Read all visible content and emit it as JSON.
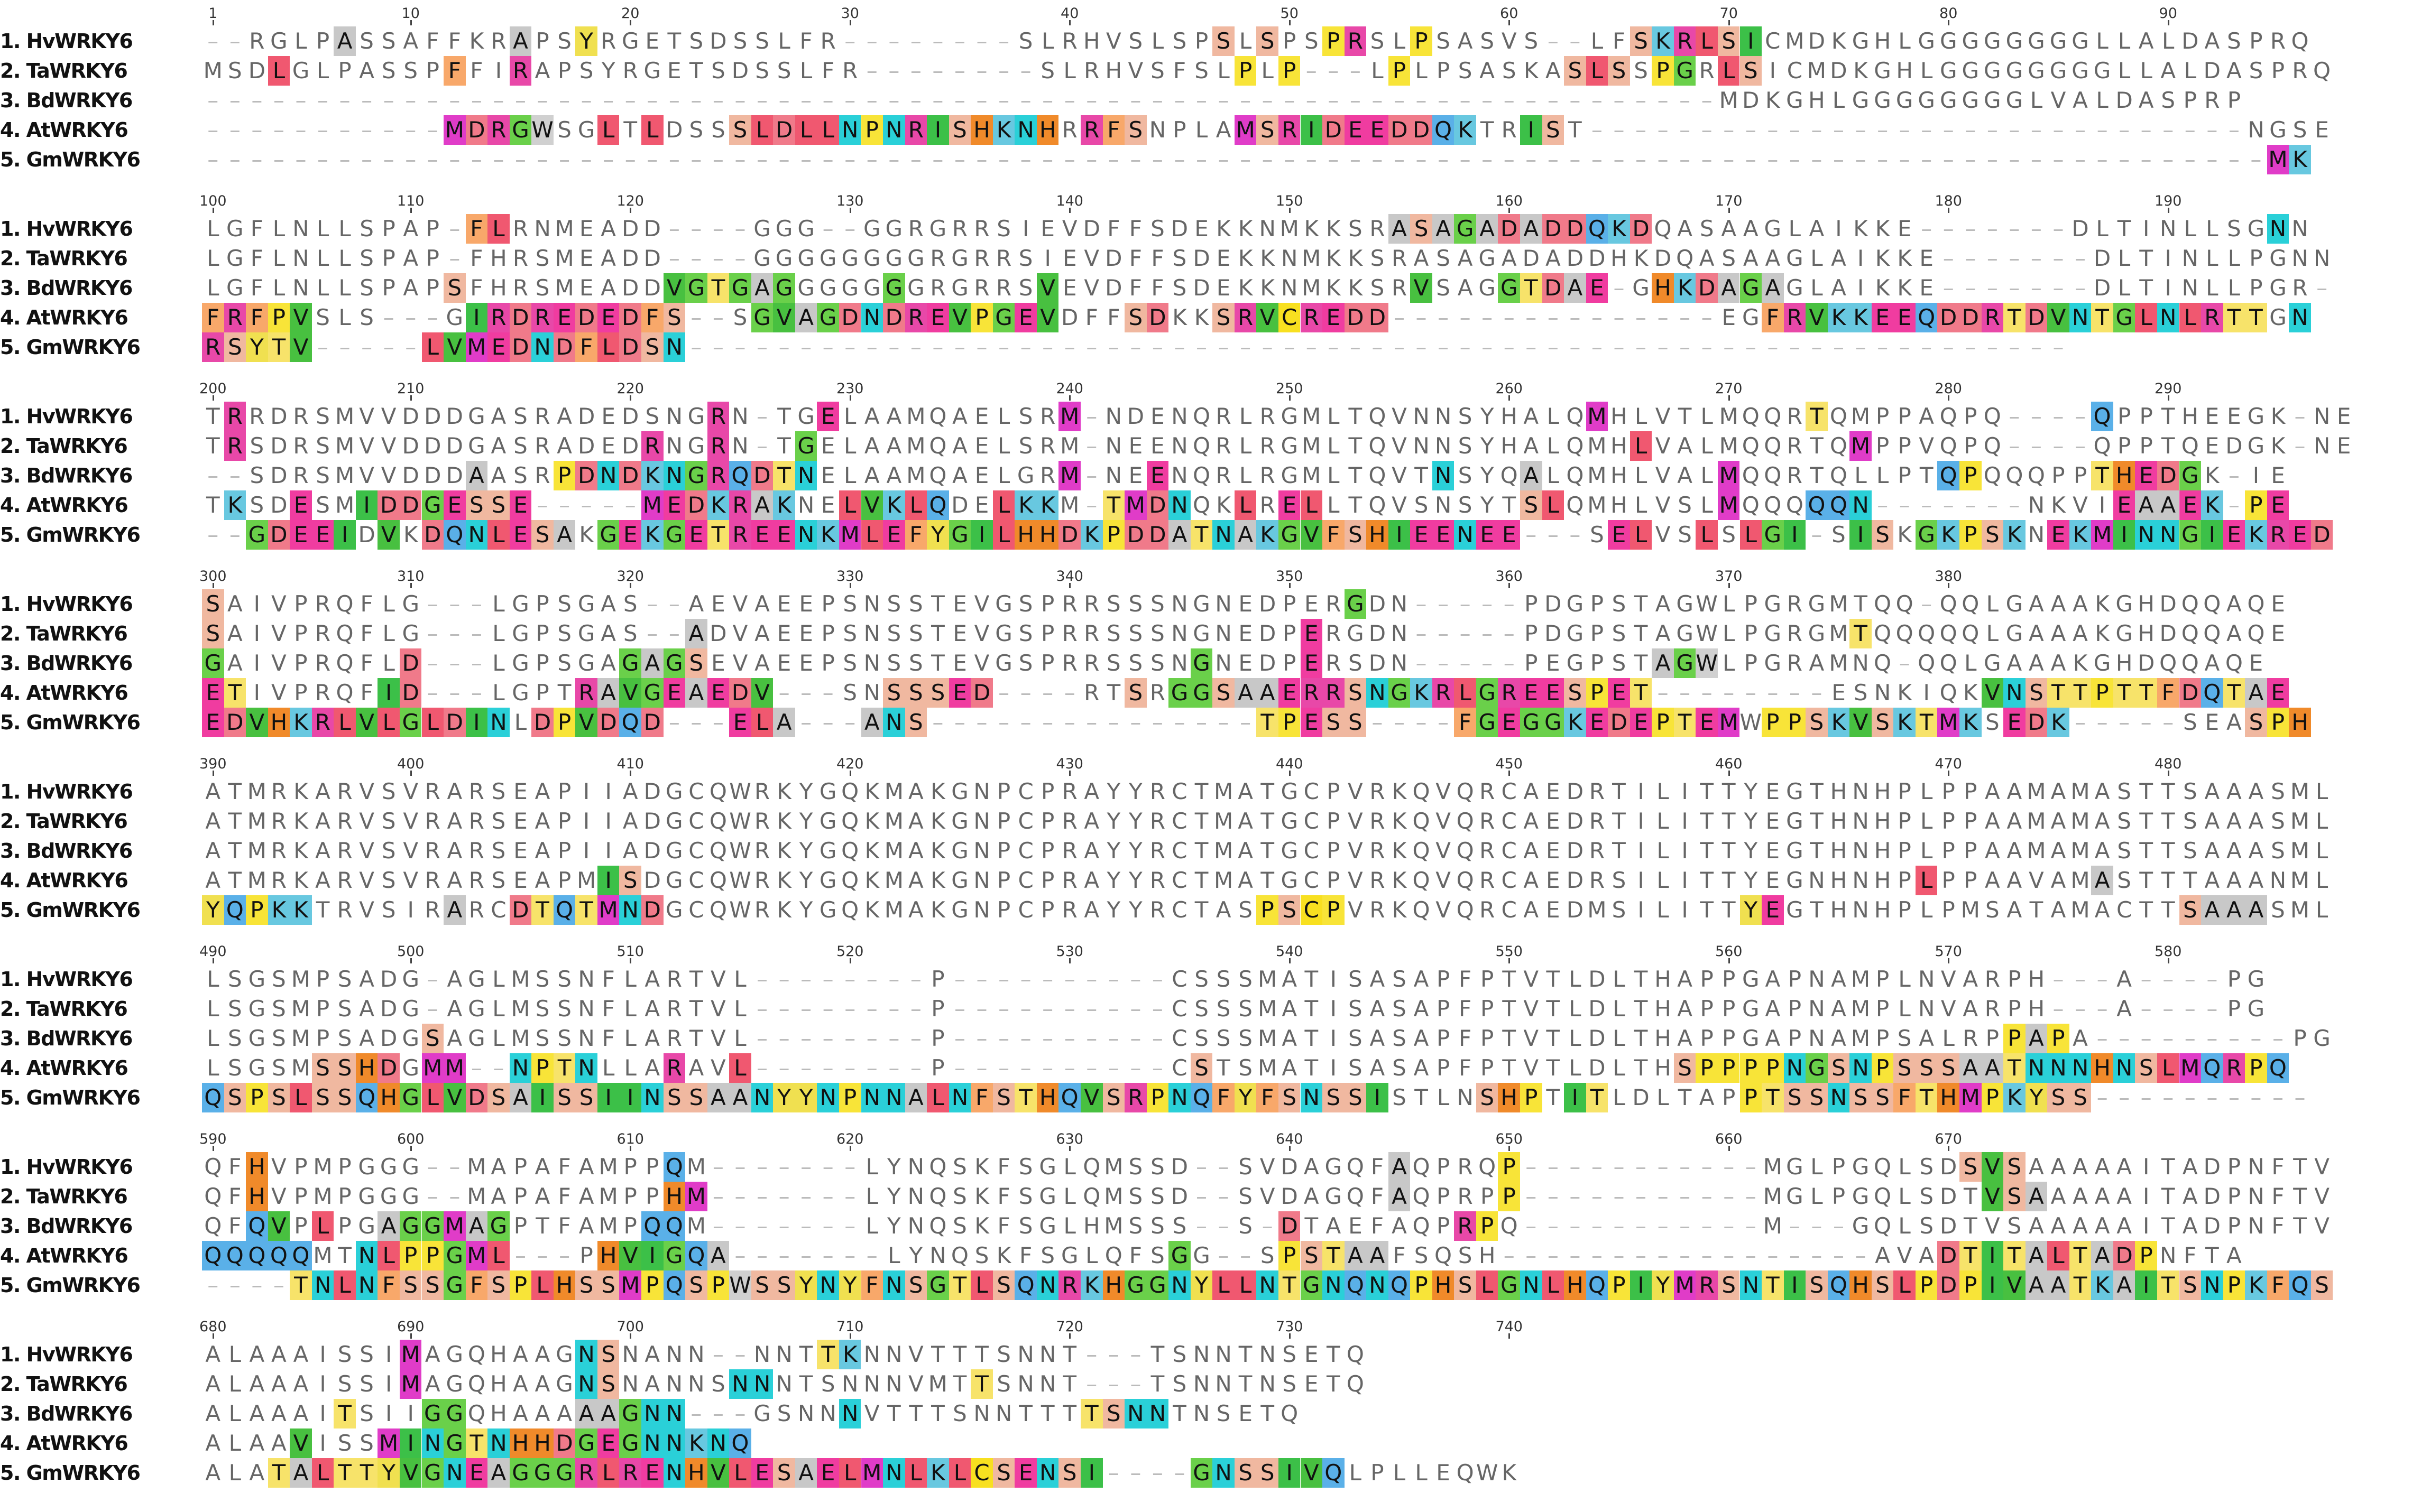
{
  "blocks": [
    {
      "ruler": [
        "1",
        "10",
        "20",
        "30",
        "40",
        "50",
        "60",
        "70",
        "80",
        "90"
      ],
      "rows": [
        {
          "name": "1. HvWRKY6",
          "seq": "--RGLPASSAFFKRAPSYRGETSDSSLFR--------SLRHVSLSPSLSPSPRSLPSASVS--LFSKRLSICMDKGHLGGGGGGGGLLALDASPRQ",
          "hl": "......+.......+..+............................+.+..++..+.....++..++++++........................................"
        },
        {
          "name": "2. TaWRKY6",
          "seq": "MSDLGLPASSPFFIRAPSYRGETSDSSLFR--------SLRHVSFSLPLP---LPLPSASKASLSSPGRLSICMDKGHLGGGGGGGGLLALDASPRQ",
          "hl": "...+.......+..+................................+.+....+.......+++.++.++........................................."
        },
        {
          "name": "3. BdWRKY6",
          "seq": "---------------------------------------------------------------------MDKGHLGGGGGGGGLVALDASPRP",
          "hl": "..............................................................................................+......+"
        },
        {
          "name": "4. AtWRKY6",
          "seq": "-----------MDRGWSGLTLDSSSLDLLNPNRISHKNHRRFSNPLAMSRIDEEDDQKTRIST------------------------------NGSE",
          "hl": "...........+++++..+.+...+++++++++++++++.+++....+++++++++++..++.+.................................+++"
        },
        {
          "name": "5. GmWRKY6",
          "seq": "----------------------------------------------------------------------------------------------MK",
          "hl": "..............................................................................................++"
        }
      ]
    },
    {
      "ruler": [
        "100",
        "110",
        "120",
        "130",
        "140",
        "150",
        "160",
        "170",
        "180",
        "190"
      ],
      "rows": [
        {
          "name": "1. HvWRKY6",
          "seq": "LGFLNLLSPAP-FLRNMEADD----GGG--GGRGRRSIEVDFFSDEKKNMKKSRASAGADADDQKDQASAAGLAIKKE-------DLTINLLSGNN",
          "hl": "............++........................................++++++++++++............................+."
        },
        {
          "name": "2. TaWRKY6",
          "seq": "LGFLNLLSPAP-FHRSMEADD----GGGGGGGGRGRRSIEVDFFSDEKKNMKKSRASAGADADDHKDQASAAGLAIKKE-------DLTINLLPGNN",
          "hl": "................................................................................................"
        },
        {
          "name": "3. BdWRKY6",
          "seq": "LGFLNLLSPAPSFHRSMEADDVGTGAGGGGGGGRGRRSVEVDFFSDEKKNMKKSRVSAGGTDAE-GHKDAGAGLAIKKE-------DLTINLLPGR-",
          "hl": "...........+.........++++++....+......+................+...++++++.++++++..................."
        },
        {
          "name": "4. AtWRKY6",
          "seq": "FRFPVSLS---GIRDREDEDFS--SGVAGDNDREVPGEVDFFSDKKSRVCREDD---------------EGFRVKKEEQDDRTDVNTGLNLRTTGN",
          "hl": "+++++.......++++++++++...++++++++++++++...++..++++++++.................+++++++++++++++++++++++.++++++"
        },
        {
          "name": "5. GmWRKY6",
          "seq": "RSYTV-----LVMEDNDFLDSN---------------------------------------------------------------",
          "hl": "+++++.....+++++++++++++"
        }
      ]
    },
    {
      "ruler": [
        "200",
        "210",
        "220",
        "230",
        "240",
        "250",
        "260",
        "270",
        "280",
        "290"
      ],
      "rows": [
        {
          "name": "1. HvWRKY6",
          "seq": "TRRDRSMVVDDDGASRADEDSNGRN-TGELAAMQAELSRM-NDENQRLRGMLTQVNNSYHALQMHLVTLMQQRTQMPPAQPQ----QPPTHEEGK-NE",
          "hl": ".+.....................+.+..+..........+.......................+.........+..........+.+"
        },
        {
          "name": "2. TaWRKY6",
          "seq": "TRSDRSMVVDDDGASRADEDRNGRN-TGELAAMQAELSRM-NEENQRLRGMLTQVNNSYHALQMHLVALMQQRTQMPPVQPQ----QPPTQEDGK-NE",
          "hl": ".+..................+..+...+............+........................+.........+.........+"
        },
        {
          "name": "3. BdWRKY6",
          "seq": "--SDRSMVVDDDAASRPDNDKNGRQDTNELAAMQAELGRM-NEENQRLRGMLTQVTNSYQALQMHLVALMQQRTQLLPTQPQQQPPTHEDGK-IE",
          "hl": "............+...++++++++++++...........++..+............+...+........+.........++.....+++++..........+"
        },
        {
          "name": "4. AtWRKY6",
          "seq": "TKSDESMIDDGESSE-----MEDKRAKNELVKLQDELKKM-TMDNQKLRELLTQVSNSYTSLQMHLVSLMQQQQQN-------NKVIEAAEK-PE",
          "hl": ".+..+..++++++++.....+++++++..+++++..+++..++++..+.++.........++.......+...++++..........+++++++++.+"
        },
        {
          "name": "5. GmWRKY6",
          "seq": "--GDEEIDVKDQNLESAKGEKGETREENKMLEFYGILHHDKPDDATNAKGVFSHIEENEE---SELVSLSLGI-SISKGKPSKNEKMINNGIEKRED",
          "hl": "..+++++.+.+++++++.+++++++++++++++++++++++++++++++++++++++++++...++..+.++++.++.+++++.++++++++++++++++"
        }
      ]
    },
    {
      "ruler": [
        "300",
        "310",
        "320",
        "330",
        "340",
        "350",
        "360",
        "370",
        "380"
      ],
      "rows": [
        {
          "name": "1. HvWRKY6",
          "seq": "SAIVPRQFLG---LGPSGAS--AEVAEEPSNSSTEVGSPRRSSSNGNEDPERGDN-----PDGPSTAGWLPGRGMTQQ-QQLGAAAKGHDQQAQE",
          "hl": "+...................................................+....+"
        },
        {
          "name": "2. TaWRKY6",
          "seq": "SAIVPRQFLG---LGPSGAS--ADVAEEPSNSSTEVGSPRRSSSNGNEDPERGDN-----PDGPSTAGWLPGRGMTQQQQQLGAAAKGHDQQAQE",
          "hl": "+.....................+...........................+.....+..................+"
        },
        {
          "name": "3. BdWRKY6",
          "seq": "GAIVPRQFLD---LGPSGAGAGSEVAEEPSNSSTEVGSPRRSSSNGNEDPERSDN-----PEGPSTAGWLPGRAMNQ-QQLGAAAKGHDQQAQE",
          "hl": "+........+.........++++......................+....+...............+++"
        },
        {
          "name": "4. AtWRKY6",
          "seq": "ETIVPRQFID---LGPTRAVGEAEDV---SNSSSED----RTSRGGSAAERRSNGKRLGREESPET--------ESNKIQKVNSTTPTTFDQTAE",
          "hl": "++......++.......+++++++++.....++++++.....+.++++++++++++++++++++++++++++.........+++++++++++++++++++++++"
        },
        {
          "name": "5. GmWRKY6",
          "seq": "EDVHKRLVLGLDINLDPVDQD---ELA---ANS---------------TPESS----FGEGGKEDEPTEMWPPSKVSKTMKSEDK-----SEASPH",
          "hl": "++++++++++++++.++++++...+++...+++...............+++++....+++++++++++++.++++++++++.+++++......+++++++"
        }
      ]
    },
    {
      "ruler": [
        "390",
        "400",
        "410",
        "420",
        "430",
        "440",
        "450",
        "460",
        "470",
        "480"
      ],
      "rows": [
        {
          "name": "1. HvWRKY6",
          "seq": "ATMRKARVSVRARSEAPIIADGCQWRKYGQKMAKGNPCPRAYYRCTMATGCPVRKQVQRCAEDRTILITTYEGTHNHPLPPAAMAMASTTSAAASML",
          "hl": ""
        },
        {
          "name": "2. TaWRKY6",
          "seq": "ATMRKARVSVRARSEAPIIADGCQWRKYGQKMAKGNPCPRAYYRCTMATGCPVRKQVQRCAEDRTILITTYEGTHNHPLPPAAMAMASTTSAAASML",
          "hl": ""
        },
        {
          "name": "3. BdWRKY6",
          "seq": "ATMRKARVSVRARSEAPIIADGCQWRKYGQKMAKGNPCPRAYYRCTMATGCPVRKQVQRCAEDRTILITTYEGTHNHPLPPAAMAMASTTSAAASML",
          "hl": ""
        },
        {
          "name": "4. AtWRKY6",
          "seq": "ATMRKARVSVRARSEAPMISDGCQWRKYGQKMAKGNPCPRAYYRCTMATGCPVRKQVQRCAEDRSILITTYEGNHNHPLPPAAVAMASTTTAAANML",
          "hl": "..................++..........................................................+.......+...........+.........+.....+"
        },
        {
          "name": "5. GmWRKY6",
          "seq": "YQPKKTRVSIRARCDTQTMNDGCQWRKYGQKMAKGNPCPRAYYRCTASPSCPVRKQVQRCAEDMSILITTYEGTHNHPLPMSATAMACTTSAAASML",
          "hl": "+++++......+..+++++++...........................++++..................++..................++++...++"
        }
      ]
    },
    {
      "ruler": [
        "490",
        "500",
        "510",
        "520",
        "530",
        "540",
        "550",
        "560",
        "570",
        "580"
      ],
      "rows": [
        {
          "name": "1. HvWRKY6",
          "seq": "LSGSMPSADG-AGLMSSNFLARTVL--------P----------CSSSMATISASAPFPTVTLDLTHAPPGAPNAMPLNVARPH---A----PG",
          "hl": "..........................................................................................+"
        },
        {
          "name": "2. TaWRKY6",
          "seq": "LSGSMPSADG-AGLMSSNFLARTVL--------P----------CSSSMATISASAPFPTVTLDLTHAPPGAPNAMPLNVARPH---A----PG",
          "hl": "..........................................................................................+"
        },
        {
          "name": "3. BdWRKY6",
          "seq": "LSGSMPSADGSAGLMSSNFLARTVL--------P----------CSSSMATISASAPFPTVTLDLTHAPPGAPNAMPSALRPPAPA---------PG",
          "hl": "..........+.......................................................................+++..++++"
        },
        {
          "name": "4. AtWRKY6",
          "seq": "LSGSMSSHDGMM--NPTNLLARAVL--------P----------CSTSMATISASAPFPTVTLDLTHSPPPPNGSNPSSSAATNNNHNSLMQRPQ",
          "hl": ".....++++.++..++++...+..+....................+.....................++++++++++++++++++++++++++++++"
        },
        {
          "name": "5. GmWRKY6",
          "seq": "QSPSLSSQHGLVDSAISSIINSSAANYYNPNNALNFSTHQVSRPNQFYFSNSSISTLNSHPTITLDLTAPPTSSNSSFTHMPKYSS----------",
          "hl": "++++++++++++++++++++++++++++++++++++++++++++++++++++++....+++.++......+++++++++++++++++++"
        }
      ]
    },
    {
      "ruler": [
        "590",
        "600",
        "610",
        "620",
        "630",
        "640",
        "650",
        "660",
        "670"
      ],
      "rows": [
        {
          "name": "1. HvWRKY6",
          "seq": "QFHVPMPGGG--MAPAFAMPPQM-------LYNQSKFSGLQMSSD--SVDAGQFAQPRQP-----------MGLPGQLSDSVSAAAAAITADPNFTV",
          "hl": "..+..................+.+..............................+....+.....+..............+++.."
        },
        {
          "name": "2. TaWRKY6",
          "seq": "QFHVPMPGGG--MAPAFAMPPHM-------LYNQSKFSGLQMSSD--SVDAGQFAQPRPP-----------MGLPGQLSDTVSAAAAAITADPNFTV",
          "hl": "..+..................++...............................+....+.....................+++"
        },
        {
          "name": "3. BdWRKY6",
          "seq": "QFQVPLPGAGGMAGPTFAMPQQM-------LYNQSKFSGLHMSSS--S-DTAEFAQPRPQ-----------M---GQLSDTVSAAAAAITADPNFTV",
          "hl": "..++.+..++++++......++...........................+.......++.........+"
        },
        {
          "name": "4. AtWRKY6",
          "seq": "QQQQQMTNLPPGML---PHVIGQA-------LYNQSKFSGLQFSGG--SPSTAAFSQSH-----------------AVADTITALTADPNFTA",
          "hl": "+++++..++++++++...++++++++..................+.+..+++++.........................++++++++++......+"
        },
        {
          "name": "5. GmWRKY6",
          "seq": "----TNLNFSSGFSPLHSSMPQSPWSSYNYFNSGTLSQNRKHGGNYLLNTGNQNQPHSLGNLHQPIYMRSNTISQHSLPDPIVAATKAITSNPKFQS",
          "hl": "....++++++++++++++++++++++++++++++++++++++++++++++++++++++++++++++++++++++++++++++++++++++++++++++"
        }
      ]
    },
    {
      "ruler": [
        "680",
        "690",
        "700",
        "710",
        "720",
        "730",
        "740"
      ],
      "rows": [
        {
          "name": "1. HvWRKY6",
          "seq": "ALAAAISSIMAGQHAAGNSNANN--NNTTKNNVTTTSNNT---TSNNTNSETQ",
          "hl": ".........+.......++.........++"
        },
        {
          "name": "2. TaWRKY6",
          "seq": "ALAAAISSIMAGQHAAGNSNANNSNNNTSNNNVMTTSNNT---TSNNTNSETQ",
          "hl": ".........+.......++.....++.........+"
        },
        {
          "name": "3. BdWRKY6",
          "seq": "ALAAAITSIIGGQHAAAAAGNN---GSNNNVTTTSNNTTTTSNNTNSETQ",
          "hl": "......+...++.....+++++.......+..........++++"
        },
        {
          "name": "4. AtWRKY6",
          "seq": "ALAAVISSMINGTNHHDGEGNNKNQ",
          "hl": "....+...+++++++++++++++++"
        },
        {
          "name": "5. GmWRKY6",
          "seq": "ALATALTTYVGNEAGGGRLRENHVLESAELMNLKLCSENSI----GNSSIVQLPLLEQWK",
          "hl": "...++++++++++++++++++++++++++++++++++++++....+++++++"
        }
      ]
    }
  ],
  "colors": {
    "A": "#c8c8c8",
    "G": "#6ad04a",
    "S": "#f0b8a0",
    "T": "#f7e36a",
    "N": "#2ad0d8",
    "Q": "#5ab0e8",
    "D": "#f07a8a",
    "E": "#f03ca0",
    "K": "#68c8e0",
    "R": "#e848a8",
    "H": "#f08a2a",
    "P": "#f8e438",
    "L": "#f05870",
    "I": "#3cc048",
    "V": "#48c040",
    "M": "#e03cc8",
    "F": "#f8a86a",
    "W": "#d0d0d0",
    "Y": "#f0e050",
    "C": "#f8e020"
  }
}
